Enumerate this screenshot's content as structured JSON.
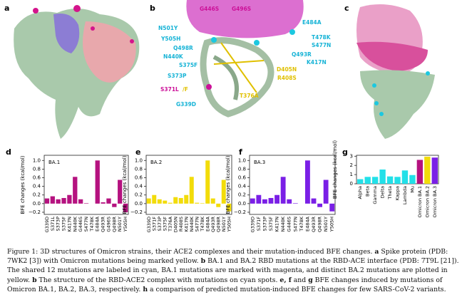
{
  "panels": {
    "a": {
      "letter": "a"
    },
    "b": {
      "letter": "b",
      "labels": [
        {
          "text": "G446S",
          "color": "#cc1199"
        },
        {
          "text": "G496S",
          "color": "#cc1199"
        },
        {
          "text": "N501Y",
          "color": "#16b3d6"
        },
        {
          "text": "E484A",
          "color": "#16b3d6"
        },
        {
          "text": "Y505H",
          "color": "#16b3d6"
        },
        {
          "text": "T478K",
          "color": "#16b3d6"
        },
        {
          "text": "S477N",
          "color": "#16b3d6"
        },
        {
          "text": "Q498R",
          "color": "#16b3d6"
        },
        {
          "text": "Q493R",
          "color": "#16b3d6"
        },
        {
          "text": "N440K",
          "color": "#16b3d6"
        },
        {
          "text": "K417N",
          "color": "#16b3d6"
        },
        {
          "text": "S375F",
          "color": "#16b3d6"
        },
        {
          "text": "D405N",
          "color": "#e0c000"
        },
        {
          "text": "R408S",
          "color": "#e0c000"
        },
        {
          "text": "S373P",
          "color": "#16b3d6"
        },
        {
          "text": "S371L",
          "color": "#cc1199"
        },
        {
          "text": "/F",
          "color": "#e0c000"
        },
        {
          "text": "T376A",
          "color": "#e0c000"
        },
        {
          "text": "G339D",
          "color": "#16b3d6"
        }
      ]
    },
    "c": {
      "letter": "c"
    }
  },
  "chart_data": [
    {
      "type": "bar",
      "panel": "d",
      "title": "BA.1",
      "y_label": "BFE changes (kcal/mol)",
      "categories": [
        "G339D",
        "S371L",
        "S373P",
        "S375F",
        "K417N",
        "N440K",
        "G446S",
        "S477N",
        "T478K",
        "E484A",
        "Q493R",
        "G496S",
        "Q498R",
        "N501Y",
        "Y505H"
      ],
      "values": [
        0.12,
        0.17,
        0.1,
        0.13,
        0.2,
        0.62,
        0.1,
        0.01,
        0.0,
        1.0,
        0.03,
        0.12,
        -0.08,
        0.55,
        -0.2
      ],
      "color": "#b5127f",
      "ylim": [
        -0.25,
        1.12
      ],
      "yticks": [
        {
          "value": -0.2,
          "label": "−0.2"
        },
        {
          "value": 0,
          "label": "0.0"
        },
        {
          "value": 0.2,
          "label": "0.2"
        },
        {
          "value": 0.4,
          "label": "0.4"
        },
        {
          "value": 0.6,
          "label": "0.6"
        },
        {
          "value": 0.8,
          "label": "0.8"
        },
        {
          "value": 1,
          "label": "1.0"
        }
      ]
    },
    {
      "type": "bar",
      "panel": "e",
      "title": "BA.2",
      "y_label": "BFE changes (kcal/mol)",
      "categories": [
        "G339D",
        "S371F",
        "S373P",
        "S375F",
        "T376A",
        "D405N",
        "R408S",
        "K417N",
        "N440K",
        "S477N",
        "T478K",
        "E484A",
        "Q493R",
        "Q498R",
        "N501Y",
        "Y505H"
      ],
      "values": [
        0.12,
        0.2,
        0.1,
        0.07,
        0.02,
        0.15,
        0.13,
        0.2,
        0.62,
        0.02,
        0.01,
        1.0,
        0.12,
        -0.08,
        0.55,
        -0.18
      ],
      "color": "#f2dc0a",
      "ylim": [
        -0.25,
        1.12
      ],
      "yticks": [
        {
          "value": -0.2,
          "label": "−0.2"
        },
        {
          "value": 0,
          "label": "0.0"
        },
        {
          "value": 0.2,
          "label": "0.2"
        },
        {
          "value": 0.4,
          "label": "0.4"
        },
        {
          "value": 0.6,
          "label": "0.6"
        },
        {
          "value": 0.8,
          "label": "0.8"
        },
        {
          "value": 1,
          "label": "1.0"
        }
      ]
    },
    {
      "type": "bar",
      "panel": "f",
      "title": "BA.3",
      "y_label": "BFE changes (kcal/mol)",
      "categories": [
        "G339D",
        "S371F",
        "S373P",
        "S375F",
        "K417N",
        "N440K",
        "G446S",
        "S477N",
        "T478K",
        "E484A",
        "Q493R",
        "Q498R",
        "N501Y",
        "Y505H"
      ],
      "values": [
        0.12,
        0.2,
        0.1,
        0.13,
        0.2,
        0.62,
        0.1,
        0.01,
        0.0,
        1.0,
        0.12,
        -0.08,
        0.55,
        -0.18
      ],
      "color": "#7a1fe6",
      "ylim": [
        -0.25,
        1.12
      ],
      "yticks": [
        {
          "value": -0.2,
          "label": "−0.2"
        },
        {
          "value": 0,
          "label": "0.0"
        },
        {
          "value": 0.2,
          "label": "0.2"
        },
        {
          "value": 0.4,
          "label": "0.4"
        },
        {
          "value": 0.6,
          "label": "0.6"
        },
        {
          "value": 0.8,
          "label": "0.8"
        },
        {
          "value": 1,
          "label": "1.0"
        }
      ]
    },
    {
      "type": "bar",
      "panel": "g",
      "y_label": "BFE changes (kcal/mol)",
      "categories": [
        "Alpha",
        "Beta",
        "Gamma",
        "Delta",
        "Theta",
        "Kappa",
        "Lambda",
        "Mu",
        "Omicron BA.1",
        "Omicron BA.2",
        "Omicron BA.3"
      ],
      "values": [
        0.5,
        0.75,
        0.75,
        1.55,
        0.8,
        0.75,
        1.45,
        0.95,
        2.6,
        2.95,
        2.85
      ],
      "colors": [
        "#22e0e8",
        "#22e0e8",
        "#22e0e8",
        "#22e0e8",
        "#22e0e8",
        "#22e0e8",
        "#22e0e8",
        "#22e0e8",
        "#b5127f",
        "#f2dc0a",
        "#7a1fe6"
      ],
      "ylim": [
        0,
        3.1
      ],
      "yticks": [
        0,
        1,
        2,
        3
      ]
    }
  ],
  "caption": [
    {
      "text": "Figure 1: 3D structures of Omicron strains, their ACE2 complexes and their mutation-induced BFE changes. "
    },
    {
      "text": "a",
      "bold": true
    },
    {
      "text": " Spike protein (PDB: 7WK2 [3]) with Omicron mutations being marked yellow. "
    },
    {
      "text": "b",
      "bold": true
    },
    {
      "text": " BA.1 and BA.2 RBD mutations at the RBD-ACE interface (PDB: 7T9L [21]). The shared 12 mutations are labeled in cyan, BA.1 mutations are marked with magenta, and distinct BA.2 mutations are plotted in yellow. "
    },
    {
      "text": "b",
      "bold": true
    },
    {
      "text": " The structure of the RBD-ACE2 complex with mutations on cyan spots. "
    },
    {
      "text": "e, f",
      "bold": true
    },
    {
      "text": " and "
    },
    {
      "text": "g",
      "bold": true
    },
    {
      "text": " BFE changes induced by mutations of Omicron BA.1, BA.2, BA.3, respectively. "
    },
    {
      "text": "h",
      "bold": true
    },
    {
      "text": " a comparison of predicted mutation-induced BFE changes for few SARS-CoV-2 variants."
    }
  ]
}
